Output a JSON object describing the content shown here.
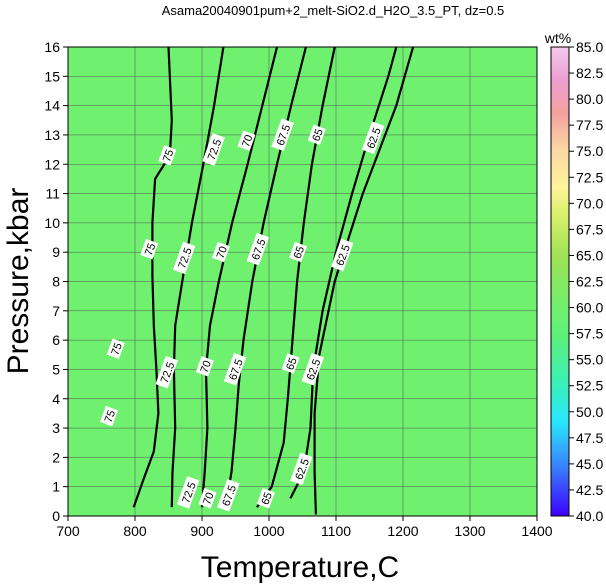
{
  "chart_data": {
    "type": "contour",
    "title": "Asama20040901pum+2_melt-SiO2.d_H2O_3.5_PT, dz=0.5",
    "xlabel": "Temperature,C",
    "ylabel": "Pressure,kbar",
    "xlim": [
      700,
      1400
    ],
    "ylim": [
      0,
      16
    ],
    "xticks": [
      700,
      800,
      900,
      1000,
      1100,
      1200,
      1300,
      1400
    ],
    "yticks": [
      0,
      1,
      2,
      3,
      4,
      5,
      6,
      7,
      8,
      9,
      10,
      11,
      12,
      13,
      14,
      15,
      16
    ],
    "grid": true,
    "colorbar": {
      "label": "wt%",
      "min": 40.0,
      "max": 85.0,
      "ticks": [
        "40.0",
        "42.5",
        "45.0",
        "47.5",
        "50.0",
        "52.5",
        "55.0",
        "57.5",
        "60.0",
        "62.5",
        "65.0",
        "67.5",
        "70.0",
        "72.5",
        "75.0",
        "77.5",
        "80.0",
        "82.5",
        "85.0"
      ]
    },
    "contours": [
      {
        "level": "75",
        "points": [
          [
            798,
            0.3
          ],
          [
            812,
            1.2
          ],
          [
            828,
            2.2
          ],
          [
            835,
            3.5
          ],
          [
            832,
            5
          ],
          [
            828,
            6.5
          ],
          [
            826,
            8.2
          ],
          [
            826,
            10
          ],
          [
            830,
            11.5
          ],
          [
            852,
            12.3
          ],
          [
            855,
            13.5
          ],
          [
            850,
            16
          ]
        ]
      },
      {
        "level": "72.5",
        "points": [
          [
            855,
            0.3
          ],
          [
            856,
            1.5
          ],
          [
            860,
            3
          ],
          [
            858,
            5
          ],
          [
            860,
            6.5
          ],
          [
            872,
            8.2
          ],
          [
            885,
            10
          ],
          [
            902,
            12
          ],
          [
            918,
            14
          ],
          [
            932,
            16
          ]
        ]
      },
      {
        "level": "70",
        "points": [
          [
            900,
            0.3
          ],
          [
            904,
            1.5
          ],
          [
            908,
            3
          ],
          [
            906,
            5
          ],
          [
            912,
            6.5
          ],
          [
            925,
            8
          ],
          [
            945,
            10
          ],
          [
            968,
            12
          ],
          [
            990,
            14
          ],
          [
            1012,
            16
          ]
        ]
      },
      {
        "level": "67.5",
        "points": [
          [
            935,
            0.3
          ],
          [
            944,
            1.5
          ],
          [
            950,
            3
          ],
          [
            955,
            4.5
          ],
          [
            962,
            6
          ],
          [
            975,
            8
          ],
          [
            992,
            10
          ],
          [
            1012,
            12
          ],
          [
            1033,
            14
          ],
          [
            1055,
            16
          ]
        ]
      },
      {
        "level": "65",
        "points": [
          [
            982,
            0.3
          ],
          [
            1004,
            1
          ],
          [
            1022,
            2.5
          ],
          [
            1028,
            4
          ],
          [
            1035,
            6
          ],
          [
            1042,
            8
          ],
          [
            1052,
            10
          ],
          [
            1064,
            12
          ],
          [
            1080,
            14
          ],
          [
            1098,
            16
          ]
        ]
      },
      {
        "level": "62.5",
        "points": [
          [
            1032,
            0.6
          ],
          [
            1052,
            1.5
          ],
          [
            1062,
            3
          ],
          [
            1066,
            5
          ],
          [
            1080,
            7
          ],
          [
            1100,
            9
          ],
          [
            1124,
            11
          ],
          [
            1150,
            13
          ],
          [
            1178,
            15
          ],
          [
            1190,
            16
          ]
        ]
      },
      {
        "level": "60",
        "points": [
          [
            1070,
            0.05
          ],
          [
            1068,
            1.5
          ],
          [
            1068,
            3.5
          ],
          [
            1075,
            5.5
          ],
          [
            1098,
            8
          ],
          [
            1140,
            11
          ],
          [
            1190,
            14
          ],
          [
            1215,
            16
          ]
        ]
      }
    ],
    "contour_labels": [
      {
        "text": "75",
        "x": 762,
        "y": 3.4
      },
      {
        "text": "75",
        "x": 772,
        "y": 5.7
      },
      {
        "text": "75",
        "x": 822,
        "y": 9.1
      },
      {
        "text": "75",
        "x": 849,
        "y": 12.3
      },
      {
        "text": "72.5",
        "x": 848,
        "y": 4.9
      },
      {
        "text": "72.5",
        "x": 874,
        "y": 8.8
      },
      {
        "text": "72.5",
        "x": 918,
        "y": 12.5
      },
      {
        "text": "72.5",
        "x": 880,
        "y": 0.8
      },
      {
        "text": "70",
        "x": 905,
        "y": 5.1
      },
      {
        "text": "70",
        "x": 929,
        "y": 9.0
      },
      {
        "text": "70",
        "x": 967,
        "y": 12.8
      },
      {
        "text": "70",
        "x": 909,
        "y": 0.6
      },
      {
        "text": "67.5",
        "x": 950,
        "y": 5.0
      },
      {
        "text": "67.5",
        "x": 984,
        "y": 9.1
      },
      {
        "text": "67.5",
        "x": 1021,
        "y": 13.0
      },
      {
        "text": "67.5",
        "x": 940,
        "y": 0.7
      },
      {
        "text": "65",
        "x": 1033,
        "y": 5.2
      },
      {
        "text": "65",
        "x": 1044,
        "y": 9.0
      },
      {
        "text": "65",
        "x": 1072,
        "y": 13.0
      },
      {
        "text": "65",
        "x": 996,
        "y": 0.6
      },
      {
        "text": "62.5",
        "x": 1066,
        "y": 5.0
      },
      {
        "text": "62.5",
        "x": 1110,
        "y": 8.9
      },
      {
        "text": "62.5",
        "x": 1156,
        "y": 12.9
      },
      {
        "text": "62.5",
        "x": 1049,
        "y": 1.6
      }
    ]
  }
}
